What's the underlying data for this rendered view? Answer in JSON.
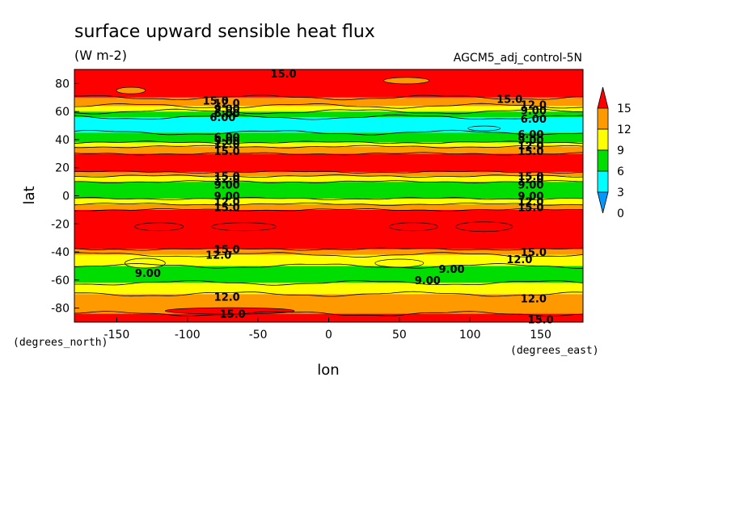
{
  "chart_data": {
    "type": "heatmap",
    "title": "surface upward sensible heat flux",
    "subtitle": "(W m-2)",
    "run_label": "AGCM5_adj_control-5N",
    "xlabel": "lon",
    "ylabel": "lat",
    "x_unit_label": "(degrees_east)",
    "y_unit_label": "(degrees_north)",
    "xlim": [
      -180,
      180
    ],
    "ylim": [
      -90,
      90
    ],
    "x_ticks": [
      -150,
      -100,
      -50,
      0,
      50,
      100,
      150
    ],
    "y_ticks": [
      -80,
      -60,
      -40,
      -20,
      0,
      20,
      40,
      60,
      80
    ],
    "legend": {
      "placement": "right",
      "levels": [
        "15",
        "12",
        "9",
        "6",
        "3",
        "0"
      ],
      "colors": [
        "#ff0000",
        "#ff9900",
        "#ffff00",
        "#00dd00",
        "#00ffff",
        "#0099ff"
      ]
    },
    "bands": [
      {
        "lat": [
          -90,
          -84
        ],
        "level": "red"
      },
      {
        "lat": [
          -84,
          -70
        ],
        "level": "orange"
      },
      {
        "lat": [
          -70,
          -62
        ],
        "level": "yellow"
      },
      {
        "lat": [
          -62,
          -50
        ],
        "level": "green"
      },
      {
        "lat": [
          -50,
          -42
        ],
        "level": "yellow"
      },
      {
        "lat": [
          -42,
          -38
        ],
        "level": "orange"
      },
      {
        "lat": [
          -38,
          -10
        ],
        "level": "red"
      },
      {
        "lat": [
          -10,
          -6
        ],
        "level": "orange"
      },
      {
        "lat": [
          -6,
          -2
        ],
        "level": "yellow"
      },
      {
        "lat": [
          -2,
          10
        ],
        "level": "green"
      },
      {
        "lat": [
          10,
          14
        ],
        "level": "yellow"
      },
      {
        "lat": [
          14,
          17
        ],
        "level": "orange"
      },
      {
        "lat": [
          17,
          30
        ],
        "level": "red"
      },
      {
        "lat": [
          30,
          35
        ],
        "level": "orange"
      },
      {
        "lat": [
          35,
          38
        ],
        "level": "yellow"
      },
      {
        "lat": [
          38,
          45
        ],
        "level": "green"
      },
      {
        "lat": [
          45,
          56
        ],
        "level": "cyan"
      },
      {
        "lat": [
          56,
          60
        ],
        "level": "green"
      },
      {
        "lat": [
          60,
          64
        ],
        "level": "yellow"
      },
      {
        "lat": [
          64,
          70
        ],
        "level": "orange"
      },
      {
        "lat": [
          70,
          90
        ],
        "level": "red"
      }
    ],
    "contour_labels": [
      {
        "text": "15.0",
        "lon": -32,
        "lat": 87
      },
      {
        "text": "15.0",
        "lon": -80,
        "lat": 68
      },
      {
        "text": "12.0",
        "lon": -72,
        "lat": 66
      },
      {
        "text": "9.00",
        "lon": -72,
        "lat": 62
      },
      {
        "text": "6.00",
        "lon": -72,
        "lat": 59
      },
      {
        "text": "6.00",
        "lon": -75,
        "lat": 56
      },
      {
        "text": "15.0",
        "lon": 128,
        "lat": 69
      },
      {
        "text": "12.0",
        "lon": 145,
        "lat": 65
      },
      {
        "text": "9.00",
        "lon": 145,
        "lat": 61
      },
      {
        "text": "6.00",
        "lon": 145,
        "lat": 55
      },
      {
        "text": "6.00",
        "lon": -72,
        "lat": 42
      },
      {
        "text": "9.00",
        "lon": -72,
        "lat": 39
      },
      {
        "text": "12.0",
        "lon": -72,
        "lat": 37
      },
      {
        "text": "15.0",
        "lon": -72,
        "lat": 32
      },
      {
        "text": "6.00",
        "lon": 143,
        "lat": 44
      },
      {
        "text": "9.00",
        "lon": 143,
        "lat": 40
      },
      {
        "text": "12.0",
        "lon": 143,
        "lat": 36
      },
      {
        "text": "15.0",
        "lon": 143,
        "lat": 32
      },
      {
        "text": "15.0",
        "lon": -72,
        "lat": 14
      },
      {
        "text": "12.0",
        "lon": -72,
        "lat": 12
      },
      {
        "text": "9.00",
        "lon": -72,
        "lat": 8
      },
      {
        "text": "9.00",
        "lon": -72,
        "lat": 0
      },
      {
        "text": "12.0",
        "lon": -72,
        "lat": -4
      },
      {
        "text": "15.0",
        "lon": -72,
        "lat": -8
      },
      {
        "text": "15.0",
        "lon": 143,
        "lat": 14
      },
      {
        "text": "12.0",
        "lon": 143,
        "lat": 12
      },
      {
        "text": "9.00",
        "lon": 143,
        "lat": 8
      },
      {
        "text": "9.00",
        "lon": 143,
        "lat": 0
      },
      {
        "text": "12.0",
        "lon": 143,
        "lat": -4
      },
      {
        "text": "15.0",
        "lon": 143,
        "lat": -8
      },
      {
        "text": "15.0",
        "lon": -72,
        "lat": -38
      },
      {
        "text": "12.0",
        "lon": -78,
        "lat": -42
      },
      {
        "text": "15.0",
        "lon": 145,
        "lat": -40
      },
      {
        "text": "12.0",
        "lon": 135,
        "lat": -45
      },
      {
        "text": "9.00",
        "lon": -128,
        "lat": -55
      },
      {
        "text": "9.00",
        "lon": 87,
        "lat": -52
      },
      {
        "text": "9.00",
        "lon": 70,
        "lat": -60
      },
      {
        "text": "12.0",
        "lon": -72,
        "lat": -72
      },
      {
        "text": "12.0",
        "lon": 145,
        "lat": -73
      },
      {
        "text": "15.0",
        "lon": -68,
        "lat": -84
      },
      {
        "text": "15.0",
        "lon": 150,
        "lat": -88
      }
    ]
  }
}
